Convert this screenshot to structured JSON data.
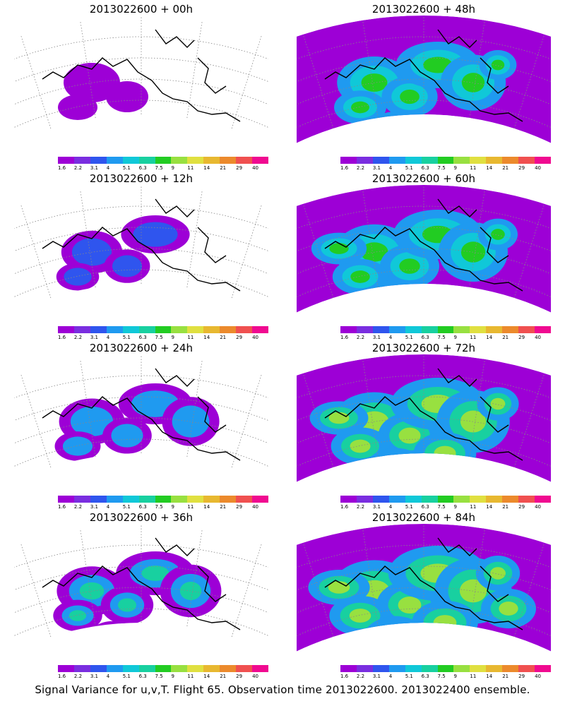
{
  "caption": "Signal Variance for u,v,T. Flight 65. Observation time 2013022600. 2013022400 ensemble.",
  "colorbar": {
    "labels": [
      "1.6",
      "2.2",
      "3.1",
      "4",
      "5.1",
      "6.3",
      "7.5",
      "9",
      "11",
      "14",
      "21",
      "29",
      "40"
    ],
    "colors": [
      "#9d00d6",
      "#7a2ee0",
      "#2f55ee",
      "#1f9af0",
      "#10c8d8",
      "#18d0a0",
      "#22cc22",
      "#98e040",
      "#e0e040",
      "#e8b830",
      "#ec8a2c",
      "#f05050",
      "#f00a90"
    ]
  },
  "panels": [
    {
      "title": "2013022600 + 00h",
      "intensity": 0
    },
    {
      "title": "2013022600 + 12h",
      "intensity": 1
    },
    {
      "title": "2013022600 + 24h",
      "intensity": 2
    },
    {
      "title": "2013022600 + 36h",
      "intensity": 3
    },
    {
      "title": "2013022600 + 48h",
      "intensity": 4
    },
    {
      "title": "2013022600 + 60h",
      "intensity": 5
    },
    {
      "title": "2013022600 + 72h",
      "intensity": 6
    },
    {
      "title": "2013022600 + 84h",
      "intensity": 7
    }
  ]
}
